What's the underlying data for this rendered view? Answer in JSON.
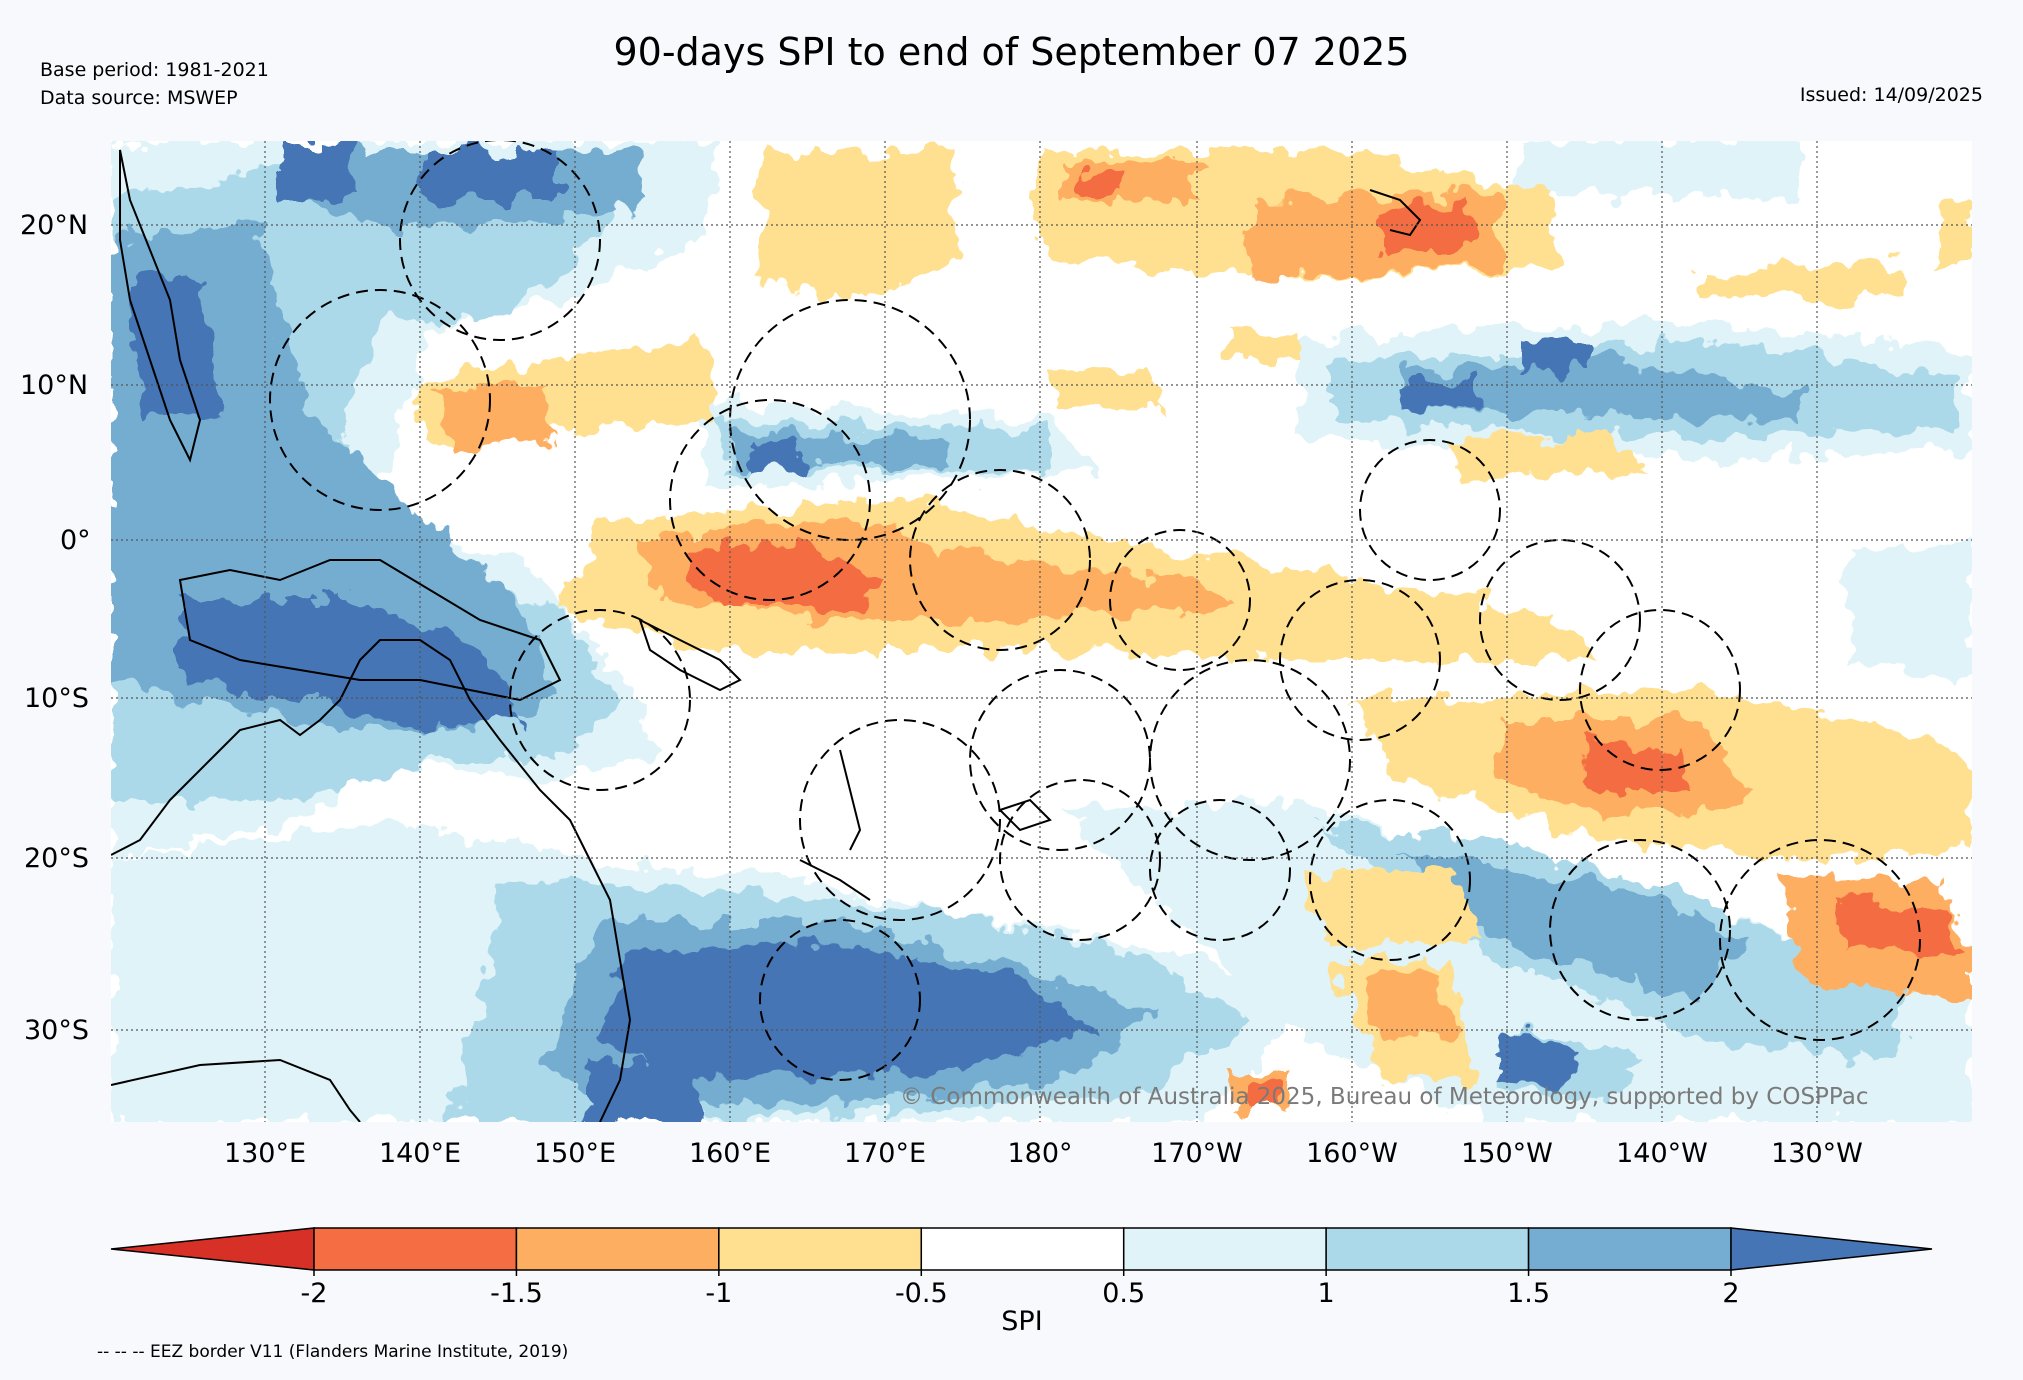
{
  "title": "90-days SPI to end of September 07 2025",
  "meta": {
    "base_period": "Base period: 1981-2021",
    "data_source": "Data source: MSWEP",
    "issued": "Issued: 14/09/2025"
  },
  "map": {
    "lat_labels": [
      "20°N",
      "10°N",
      "0°",
      "10°S",
      "20°S",
      "30°S"
    ],
    "lon_labels": [
      "130°E",
      "140°E",
      "150°E",
      "160°E",
      "170°E",
      "180°",
      "170°W",
      "160°W",
      "150°W",
      "140°W",
      "130°W"
    ],
    "copyright": "© Commonwealth of Australia 2025, Bureau of Meteorology, supported by COSPPac"
  },
  "colorbar": {
    "label": "SPI",
    "ticks": [
      "-2",
      "-1.5",
      "-1",
      "-0.5",
      "0.5",
      "1",
      "1.5",
      "2"
    ],
    "colors": [
      "#d73027",
      "#f46d43",
      "#fdae61",
      "#fee090",
      "#ffffff",
      "#e0f3f8",
      "#abd9e9",
      "#74add1",
      "#4575b4"
    ]
  },
  "footnote": "-- -- -- EEZ border V11 (Flanders Marine Institute, 2019)",
  "chart_data": {
    "type": "heatmap",
    "variable": "SPI",
    "scale_boundaries": [
      -2,
      -1.5,
      -1,
      -0.5,
      0.5,
      1,
      1.5,
      2
    ],
    "extend": "both"
  }
}
